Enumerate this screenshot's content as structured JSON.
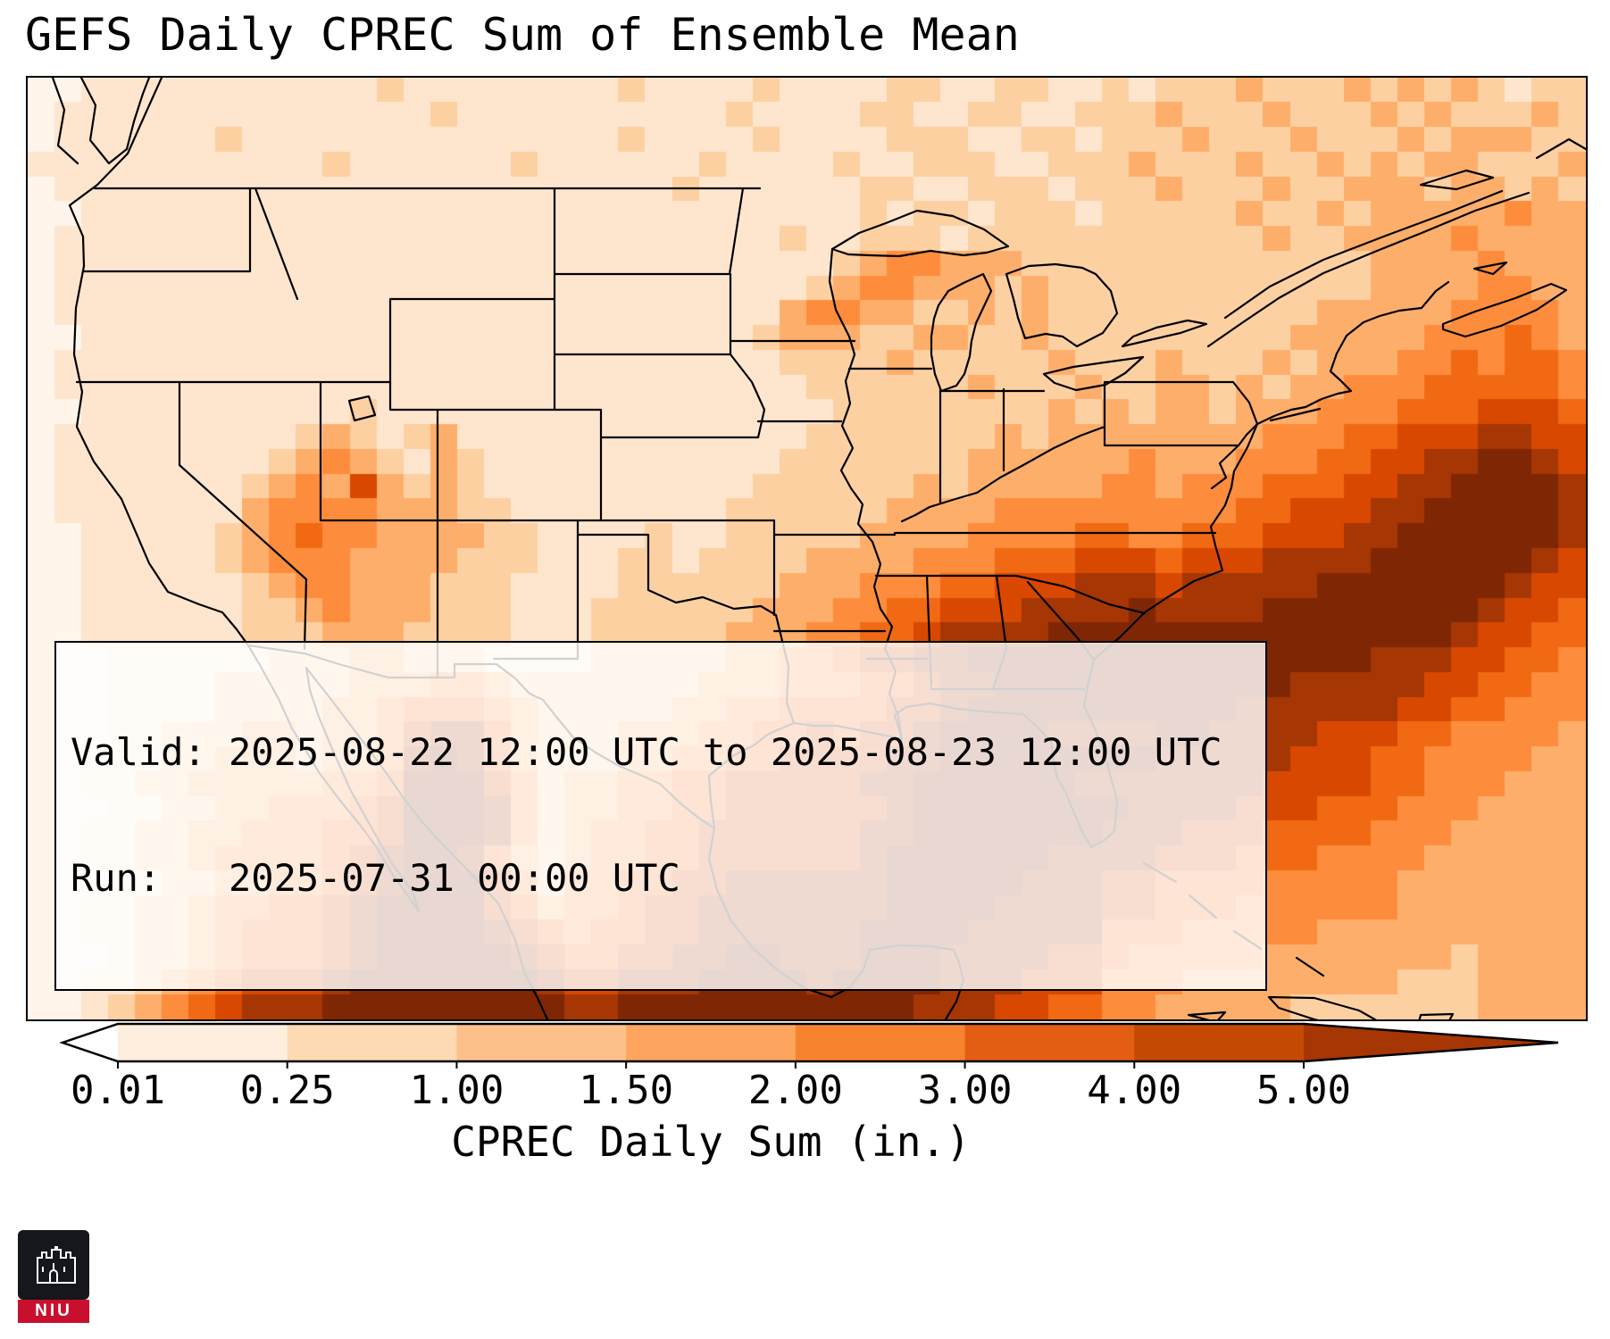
{
  "logo": {
    "text": "NIU"
  },
  "annotations": {
    "valid": "Valid: 2025-08-22 12:00 UTC to 2025-08-23 12:00 UTC",
    "run": "Run:   2025-07-31 00:00 UTC"
  },
  "chart_data": {
    "type": "heatmap",
    "title": "GEFS Daily CPREC Sum of Ensemble Mean",
    "colorbar_label": "CPREC Daily Sum (in.)",
    "legend_position": "bottom",
    "levels": [
      0.01,
      0.25,
      1.0,
      1.5,
      2.0,
      3.0,
      4.0,
      5.0
    ],
    "colorbar_ticks": [
      "0.01",
      "0.25",
      "1.00",
      "1.50",
      "2.00",
      "3.00",
      "4.00",
      "5.00"
    ],
    "colorbar": {
      "segment_colors": [
        "#fdeedd",
        "#fdd9b4",
        "#fdc08b",
        "#fda55e",
        "#f8832f",
        "#e35e12",
        "#c44a03"
      ],
      "left_arrow_color": "#ffffff",
      "right_arrow_color": "#a63603"
    },
    "colormap": "Oranges",
    "palette": [
      "#fff5eb",
      "#fee6ce",
      "#fdd0a2",
      "#fdae6b",
      "#fd8d3c",
      "#f16913",
      "#d94801",
      "#a63603",
      "#7f2704"
    ],
    "grid": {
      "cols": 58,
      "rows": 38,
      "value_scale": "index into palette, 0 = <0.01 in, 8 = >5.00 in",
      "rows_data": [
        "0011111111111211111111211112111122112211212223222323232122",
        "0111111111111112111111111121111221122112223222322232322232",
        "0111111211111111111111211112111122211221222322232223233322",
        "1111111111121111112111111211112112221122232223223232332223",
        "0111111111111111111111112111111221122212223222322333233232",
        "0011111111111111111111111111111212212221222223223233333433",
        "0111111111111111111111111111211222122222222222322333343333",
        "0111111111111111111111111111112344333222222222222233334333",
        "0111111111111111111111111111123443332322222222222233334433",
        "0111111111111111111111111111344332232322222222223333344443",
        "0011111111111111111111111112333223322322222222233333444543",
        "0111111111111111111111111111222232222232223222323334454554",
        "0111111111111111111111111111122222232223223323233444555554",
        "0011111111112111111111111111112222222232323323334445556665",
        "0111111111232123111111111111122222223233333333444556667766",
        "0111111112343213211111111111222222233333343334445566778876",
        "0111111123436323211111111112222223233333443444555667788887",
        "0111111134444333221111111122222233334444444445566677888887",
        "0011111234544333322111121122222333344445544555666778888887",
        "0011111234443333222111221222233334445556665666777788888876",
        "0011111123443332221111222222333444556667776777778888888766",
        "0011111122343332221112222223334455666777787777888888887665",
        "0011111122233322221112222233344556777788888888888888876655",
        "0001111112223322211112222233445667788888888888888877766554",
        "0001111222223334432222222333444556778888888888877777665544",
        "0001111222233455543222223344555566788888888887777776655444",
        "0001122233233467753222333445565667888877778877776665544443",
        "0001122333233478753222334455666677888888887777766655444433",
        "0011223333344588864233445566666778888887777777666655444333",
        "0001122334445688874233445566666678888888877776665554443333",
        "0011223344455688874234455666666778888888777666555544433333",
        "0011223444456788753234455666666788888877776665554444333333",
        "0001122334456788864244556677777788888777665555444443333333",
        "0011223445567888865344566777777788887777665554444443333333",
        "0011223455567888876545566777777888877777555444443333333333",
        "0001223455567888887655667788777888777766544444333333323333",
        "0011234566678888888766777888878888777666444333333332223333",
        "0012345677788888888877888888888887776655443333322222223333"
      ]
    }
  }
}
